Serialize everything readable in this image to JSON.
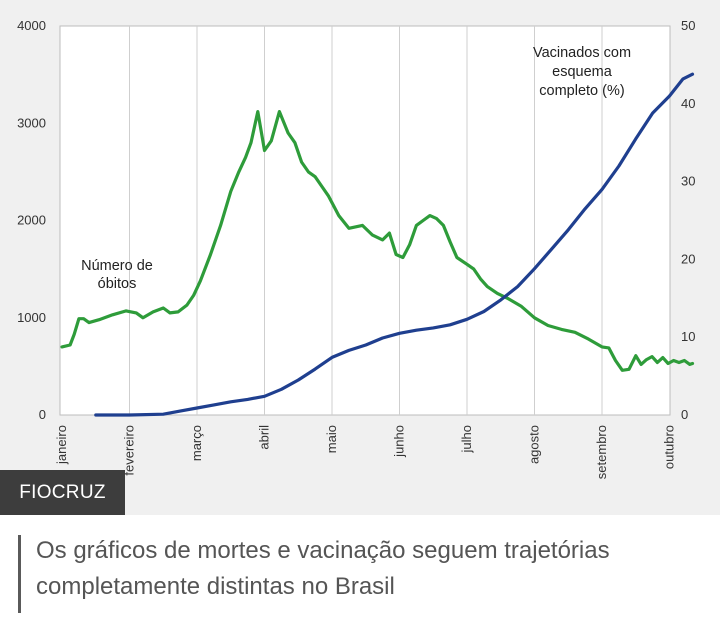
{
  "chart_data": {
    "type": "line",
    "x_categories": [
      "janeiro",
      "fevereiro",
      "março",
      "abril",
      "maio",
      "junho",
      "julho",
      "agosto",
      "setembro",
      "outubro"
    ],
    "left_axis": {
      "ticks": [
        "0",
        "1000",
        "2000",
        "3000",
        "4000"
      ],
      "ylim": [
        0,
        4000
      ]
    },
    "right_axis": {
      "ticks": [
        "0",
        "10",
        "20",
        "30",
        "40",
        "50"
      ],
      "ylim": [
        0,
        50
      ]
    },
    "series": [
      {
        "name": "Número de óbitos",
        "axis": "left",
        "color": "#2e9c3a",
        "label_lines": [
          "Número de",
          "óbitos"
        ],
        "points": [
          [
            0.0,
            700
          ],
          [
            0.12,
            720
          ],
          [
            0.18,
            830
          ],
          [
            0.25,
            990
          ],
          [
            0.32,
            990
          ],
          [
            0.4,
            950
          ],
          [
            0.55,
            980
          ],
          [
            0.75,
            1030
          ],
          [
            0.95,
            1070
          ],
          [
            1.1,
            1050
          ],
          [
            1.2,
            1000
          ],
          [
            1.35,
            1060
          ],
          [
            1.5,
            1100
          ],
          [
            1.6,
            1050
          ],
          [
            1.72,
            1060
          ],
          [
            1.85,
            1130
          ],
          [
            1.95,
            1230
          ],
          [
            2.05,
            1380
          ],
          [
            2.2,
            1650
          ],
          [
            2.35,
            1950
          ],
          [
            2.5,
            2300
          ],
          [
            2.62,
            2500
          ],
          [
            2.72,
            2650
          ],
          [
            2.8,
            2800
          ],
          [
            2.9,
            3120
          ],
          [
            3.0,
            2720
          ],
          [
            3.1,
            2820
          ],
          [
            3.22,
            3120
          ],
          [
            3.35,
            2900
          ],
          [
            3.45,
            2800
          ],
          [
            3.55,
            2600
          ],
          [
            3.65,
            2500
          ],
          [
            3.75,
            2450
          ],
          [
            3.85,
            2350
          ],
          [
            3.95,
            2250
          ],
          [
            4.1,
            2050
          ],
          [
            4.25,
            1920
          ],
          [
            4.45,
            1950
          ],
          [
            4.6,
            1850
          ],
          [
            4.75,
            1800
          ],
          [
            4.85,
            1870
          ],
          [
            4.95,
            1650
          ],
          [
            5.05,
            1620
          ],
          [
            5.15,
            1750
          ],
          [
            5.25,
            1950
          ],
          [
            5.35,
            2000
          ],
          [
            5.45,
            2050
          ],
          [
            5.55,
            2020
          ],
          [
            5.65,
            1950
          ],
          [
            5.75,
            1780
          ],
          [
            5.85,
            1620
          ],
          [
            6.0,
            1550
          ],
          [
            6.1,
            1500
          ],
          [
            6.2,
            1400
          ],
          [
            6.3,
            1320
          ],
          [
            6.45,
            1250
          ],
          [
            6.6,
            1200
          ],
          [
            6.8,
            1120
          ],
          [
            7.0,
            1000
          ],
          [
            7.2,
            920
          ],
          [
            7.4,
            880
          ],
          [
            7.6,
            850
          ],
          [
            7.8,
            780
          ],
          [
            8.0,
            700
          ],
          [
            8.1,
            690
          ],
          [
            8.2,
            560
          ],
          [
            8.3,
            460
          ],
          [
            8.4,
            470
          ],
          [
            8.5,
            610
          ],
          [
            8.58,
            520
          ],
          [
            8.66,
            570
          ],
          [
            8.74,
            600
          ],
          [
            8.82,
            540
          ],
          [
            8.9,
            590
          ],
          [
            8.98,
            530
          ],
          [
            9.06,
            560
          ],
          [
            9.14,
            540
          ],
          [
            9.22,
            560
          ],
          [
            9.3,
            520
          ],
          [
            9.34,
            530
          ]
        ]
      },
      {
        "name": "Vacinados com esquema completo (%)",
        "axis": "right",
        "color": "#1f3f8f",
        "label_lines": [
          "Vacinados com",
          "esquema",
          "completo  (%)"
        ],
        "points": [
          [
            0.5,
            0
          ],
          [
            1.0,
            0
          ],
          [
            1.5,
            0.1
          ],
          [
            1.75,
            0.5
          ],
          [
            2.0,
            0.9
          ],
          [
            2.25,
            1.3
          ],
          [
            2.5,
            1.7
          ],
          [
            2.75,
            2.0
          ],
          [
            3.0,
            2.4
          ],
          [
            3.25,
            3.3
          ],
          [
            3.5,
            4.5
          ],
          [
            3.75,
            5.9
          ],
          [
            4.0,
            7.4
          ],
          [
            4.25,
            8.3
          ],
          [
            4.5,
            9.0
          ],
          [
            4.75,
            9.9
          ],
          [
            5.0,
            10.5
          ],
          [
            5.25,
            10.9
          ],
          [
            5.5,
            11.2
          ],
          [
            5.75,
            11.6
          ],
          [
            6.0,
            12.3
          ],
          [
            6.25,
            13.3
          ],
          [
            6.5,
            14.8
          ],
          [
            6.75,
            16.5
          ],
          [
            7.0,
            18.8
          ],
          [
            7.25,
            21.3
          ],
          [
            7.5,
            23.8
          ],
          [
            7.75,
            26.5
          ],
          [
            8.0,
            29.0
          ],
          [
            8.25,
            32.0
          ],
          [
            8.5,
            35.5
          ],
          [
            8.75,
            38.8
          ],
          [
            9.0,
            41.0
          ],
          [
            9.2,
            43.2
          ],
          [
            9.34,
            43.8
          ]
        ]
      }
    ]
  },
  "badge": {
    "label": "FIOCRUZ"
  },
  "caption": {
    "text": "Os gráficos de mortes e vacinação seguem trajetórias completamente distintas no Brasil"
  }
}
